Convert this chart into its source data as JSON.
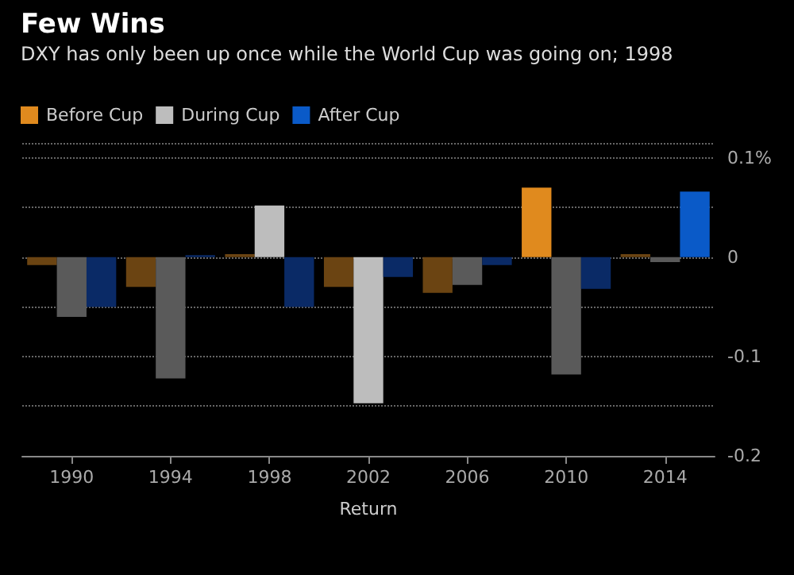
{
  "chart_data": {
    "type": "bar",
    "title": "Few Wins",
    "subtitle": "DXY has only been up once while the World Cup was going on; 1998",
    "xlabel": "Return",
    "categories": [
      "1990",
      "1994",
      "1998",
      "2002",
      "2006",
      "2010",
      "2014"
    ],
    "series": [
      {
        "name": "Before Cup",
        "color": "#e08a1e",
        "colors": [
          "#6b4412",
          "#6b4412",
          "#6b4412",
          "#6b4412",
          "#6b4412",
          "#e08a1e",
          "#6b4412"
        ],
        "values": [
          -0.008,
          -0.03,
          0.003,
          -0.03,
          -0.036,
          0.07,
          0.003
        ]
      },
      {
        "name": "During Cup",
        "color": "#bdbdbd",
        "colors": [
          "#5a5a5a",
          "#5a5a5a",
          "#bdbdbd",
          "#bdbdbd",
          "#5a5a5a",
          "#5a5a5a",
          "#5a5a5a"
        ],
        "values": [
          -0.06,
          -0.122,
          0.052,
          -0.147,
          -0.028,
          -0.118,
          -0.005
        ]
      },
      {
        "name": "After Cup",
        "color": "#0a5ac8",
        "colors": [
          "#0a2a66",
          "#0a2a66",
          "#0a2a66",
          "#0a2a66",
          "#0a2a66",
          "#0a2a66",
          "#0a5ac8"
        ],
        "values": [
          -0.05,
          0.002,
          -0.05,
          -0.02,
          -0.008,
          -0.032,
          0.066
        ]
      }
    ],
    "ylim": [
      -0.2,
      0.115
    ],
    "yticks": [
      {
        "value": -0.2,
        "label": "-0.2"
      },
      {
        "value": -0.1,
        "label": "-0.1"
      },
      {
        "value": 0,
        "label": "0"
      },
      {
        "value": 0.1,
        "label": "0.1%"
      }
    ],
    "grid": "y",
    "legend": "top left"
  }
}
